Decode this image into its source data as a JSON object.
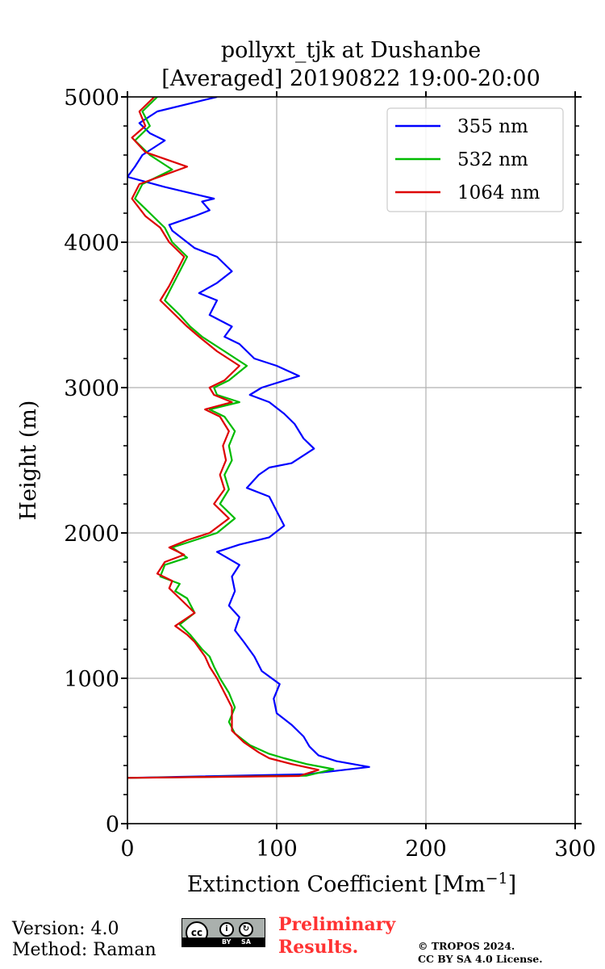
{
  "chart_data": {
    "type": "line",
    "title_line1": "pollyxt_tjk at Dushanbe",
    "title_line2": "[Averaged] 20190822 19:00-20:00",
    "xlabel": "Extinction Coefficient [Mm",
    "xlabel_sup": "−1",
    "xlabel_end": "]",
    "ylabel": "Height (m)",
    "xlim": [
      0,
      300
    ],
    "ylim": [
      0,
      5000
    ],
    "x_ticks": [
      0,
      100,
      200,
      300
    ],
    "x_tick_labels": [
      "0",
      "100",
      "200",
      "300"
    ],
    "y_ticks": [
      0,
      1000,
      2000,
      3000,
      4000,
      5000
    ],
    "y_tick_labels": [
      "0",
      "1000",
      "2000",
      "3000",
      "4000",
      "5000"
    ],
    "y_minor_step": 200,
    "grid": true,
    "legend_position": "top-right",
    "series": [
      {
        "name": "355 nm",
        "color": "#0000ff",
        "points": [
          [
            0,
            315
          ],
          [
            120,
            340
          ],
          [
            162,
            390
          ],
          [
            140,
            430
          ],
          [
            128,
            470
          ],
          [
            122,
            530
          ],
          [
            118,
            600
          ],
          [
            110,
            680
          ],
          [
            100,
            760
          ],
          [
            98,
            860
          ],
          [
            102,
            960
          ],
          [
            90,
            1050
          ],
          [
            85,
            1150
          ],
          [
            78,
            1250
          ],
          [
            72,
            1330
          ],
          [
            75,
            1420
          ],
          [
            68,
            1500
          ],
          [
            72,
            1600
          ],
          [
            70,
            1700
          ],
          [
            75,
            1780
          ],
          [
            60,
            1870
          ],
          [
            75,
            1920
          ],
          [
            95,
            1970
          ],
          [
            105,
            2050
          ],
          [
            100,
            2150
          ],
          [
            95,
            2250
          ],
          [
            80,
            2310
          ],
          [
            88,
            2400
          ],
          [
            95,
            2450
          ],
          [
            110,
            2480
          ],
          [
            125,
            2580
          ],
          [
            118,
            2650
          ],
          [
            112,
            2750
          ],
          [
            105,
            2820
          ],
          [
            95,
            2900
          ],
          [
            82,
            2950
          ],
          [
            90,
            3000
          ],
          [
            115,
            3080
          ],
          [
            100,
            3150
          ],
          [
            85,
            3200
          ],
          [
            75,
            3300
          ],
          [
            65,
            3350
          ],
          [
            70,
            3420
          ],
          [
            55,
            3500
          ],
          [
            60,
            3600
          ],
          [
            48,
            3650
          ],
          [
            60,
            3720
          ],
          [
            70,
            3800
          ],
          [
            65,
            3850
          ],
          [
            60,
            3900
          ],
          [
            45,
            3960
          ],
          [
            40,
            4000
          ],
          [
            30,
            4080
          ],
          [
            28,
            4120
          ],
          [
            45,
            4180
          ],
          [
            55,
            4220
          ],
          [
            50,
            4280
          ],
          [
            58,
            4300
          ],
          [
            25,
            4380
          ],
          [
            0,
            4450
          ],
          [
            5,
            4520
          ],
          [
            10,
            4600
          ],
          [
            25,
            4700
          ],
          [
            15,
            4750
          ],
          [
            8,
            4820
          ],
          [
            20,
            4900
          ],
          [
            60,
            5000
          ]
        ]
      },
      {
        "name": "532 nm",
        "color": "#00bb00",
        "points": [
          [
            0,
            315
          ],
          [
            120,
            330
          ],
          [
            138,
            375
          ],
          [
            120,
            410
          ],
          [
            105,
            450
          ],
          [
            95,
            480
          ],
          [
            82,
            540
          ],
          [
            72,
            620
          ],
          [
            68,
            700
          ],
          [
            72,
            800
          ],
          [
            68,
            900
          ],
          [
            62,
            1000
          ],
          [
            58,
            1080
          ],
          [
            55,
            1150
          ],
          [
            50,
            1200
          ],
          [
            42,
            1300
          ],
          [
            35,
            1370
          ],
          [
            45,
            1450
          ],
          [
            40,
            1550
          ],
          [
            32,
            1600
          ],
          [
            35,
            1650
          ],
          [
            22,
            1700
          ],
          [
            25,
            1780
          ],
          [
            40,
            1830
          ],
          [
            30,
            1900
          ],
          [
            45,
            1950
          ],
          [
            60,
            2000
          ],
          [
            72,
            2100
          ],
          [
            62,
            2200
          ],
          [
            68,
            2300
          ],
          [
            65,
            2400
          ],
          [
            70,
            2500
          ],
          [
            68,
            2600
          ],
          [
            72,
            2700
          ],
          [
            65,
            2800
          ],
          [
            55,
            2850
          ],
          [
            75,
            2900
          ],
          [
            60,
            2950
          ],
          [
            58,
            3000
          ],
          [
            68,
            3050
          ],
          [
            80,
            3150
          ],
          [
            65,
            3250
          ],
          [
            50,
            3350
          ],
          [
            42,
            3420
          ],
          [
            35,
            3500
          ],
          [
            25,
            3600
          ],
          [
            30,
            3700
          ],
          [
            35,
            3800
          ],
          [
            40,
            3900
          ],
          [
            30,
            4000
          ],
          [
            25,
            4100
          ],
          [
            15,
            4200
          ],
          [
            5,
            4300
          ],
          [
            10,
            4400
          ],
          [
            30,
            4500
          ],
          [
            15,
            4600
          ],
          [
            5,
            4700
          ],
          [
            15,
            4800
          ],
          [
            10,
            4900
          ],
          [
            20,
            5000
          ]
        ]
      },
      {
        "name": "1064 nm",
        "color": "#dd0000",
        "points": [
          [
            0,
            315
          ],
          [
            115,
            328
          ],
          [
            128,
            370
          ],
          [
            110,
            410
          ],
          [
            95,
            450
          ],
          [
            88,
            490
          ],
          [
            78,
            560
          ],
          [
            70,
            640
          ],
          [
            70,
            720
          ],
          [
            70,
            800
          ],
          [
            65,
            900
          ],
          [
            60,
            1000
          ],
          [
            55,
            1080
          ],
          [
            52,
            1150
          ],
          [
            45,
            1250
          ],
          [
            40,
            1300
          ],
          [
            32,
            1360
          ],
          [
            45,
            1450
          ],
          [
            35,
            1550
          ],
          [
            28,
            1620
          ],
          [
            30,
            1670
          ],
          [
            20,
            1720
          ],
          [
            25,
            1800
          ],
          [
            38,
            1850
          ],
          [
            28,
            1900
          ],
          [
            40,
            1950
          ],
          [
            55,
            2000
          ],
          [
            68,
            2100
          ],
          [
            58,
            2200
          ],
          [
            65,
            2300
          ],
          [
            62,
            2400
          ],
          [
            66,
            2500
          ],
          [
            64,
            2600
          ],
          [
            68,
            2700
          ],
          [
            62,
            2800
          ],
          [
            52,
            2850
          ],
          [
            70,
            2900
          ],
          [
            58,
            2950
          ],
          [
            55,
            3000
          ],
          [
            65,
            3050
          ],
          [
            75,
            3150
          ],
          [
            60,
            3250
          ],
          [
            48,
            3350
          ],
          [
            40,
            3420
          ],
          [
            32,
            3500
          ],
          [
            22,
            3600
          ],
          [
            28,
            3700
          ],
          [
            33,
            3800
          ],
          [
            38,
            3900
          ],
          [
            28,
            4000
          ],
          [
            22,
            4100
          ],
          [
            12,
            4180
          ],
          [
            3,
            4300
          ],
          [
            8,
            4400
          ],
          [
            40,
            4520
          ],
          [
            12,
            4620
          ],
          [
            3,
            4720
          ],
          [
            12,
            4800
          ],
          [
            8,
            4900
          ],
          [
            18,
            5000
          ]
        ]
      }
    ]
  },
  "footer": {
    "version": "Version: 4.0",
    "method": "Method: Raman",
    "preliminary_line1": "Preliminary",
    "preliminary_line2": "Results.",
    "copyright_line1": "© TROPOS 2024.",
    "copyright_line2": "CC BY SA 4.0 License.",
    "license_badge": [
      "cc",
      "BY",
      "SA"
    ]
  }
}
